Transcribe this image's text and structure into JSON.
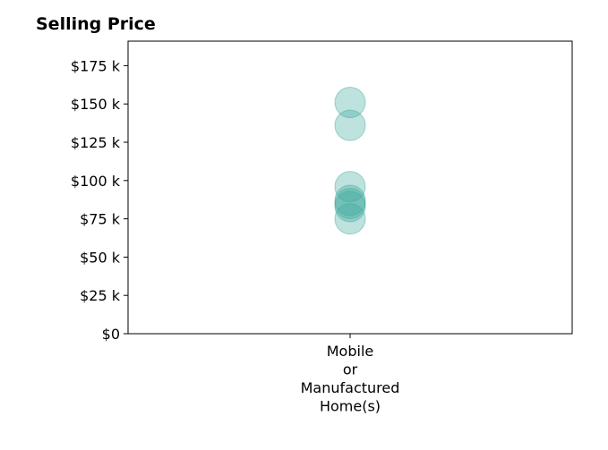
{
  "chart_data": {
    "type": "scatter",
    "title": "Selling Price",
    "categories": [
      "Mobile\nor\nManufactured\nHome(s)"
    ],
    "series": [
      {
        "category": "Mobile\nor\nManufactured\nHome(s)",
        "values": [
          151000,
          136000,
          96000,
          87000,
          85000,
          83000,
          75000
        ]
      }
    ],
    "yticks": [
      {
        "value": 0,
        "label": "$0"
      },
      {
        "value": 25000,
        "label": "$25 k"
      },
      {
        "value": 50000,
        "label": "$50 k"
      },
      {
        "value": 75000,
        "label": "$75 k"
      },
      {
        "value": 100000,
        "label": "$100 k"
      },
      {
        "value": 125000,
        "label": "$125 k"
      },
      {
        "value": 150000,
        "label": "$150 k"
      },
      {
        "value": 175000,
        "label": "$175 k"
      }
    ],
    "ylim": [
      0,
      191000
    ],
    "grid": false,
    "marker_color": "#3aa89a"
  }
}
